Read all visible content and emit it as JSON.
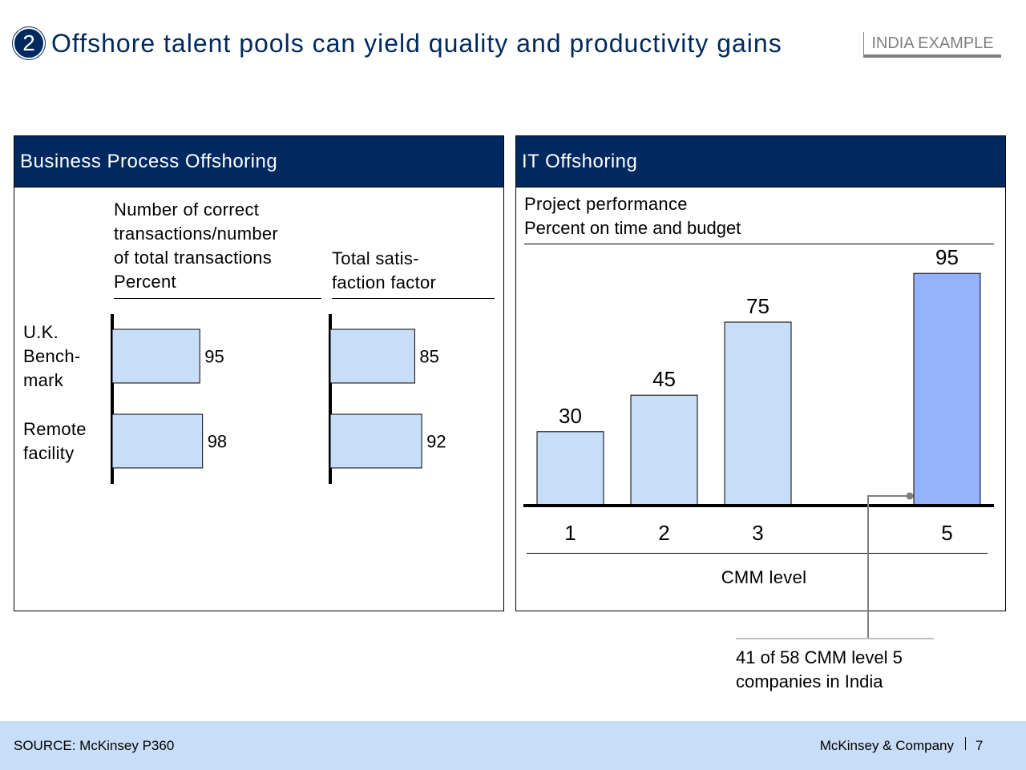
{
  "header": {
    "number": "2",
    "title": "Offshore talent pools can yield quality and productivity gains",
    "tag": "INDIA EXAMPLE"
  },
  "panels": {
    "bpo": {
      "title": "Business Process Offshoring",
      "col1_label": [
        "Number of correct",
        "transactions/number",
        "of total transactions",
        "Percent"
      ],
      "col2_label": [
        "Total satis-",
        "faction factor"
      ],
      "row_labels": [
        [
          "U.K.",
          "Bench-",
          "mark"
        ],
        [
          "Remote",
          "facility"
        ]
      ]
    },
    "it": {
      "title": "IT Offshoring",
      "chart_title": [
        "Project performance",
        "Percent on time and budget"
      ],
      "xlabel": "CMM level",
      "callout": [
        "41 of 58 CMM level 5",
        "companies in India"
      ]
    }
  },
  "chart_data": [
    {
      "type": "bar",
      "orientation": "horizontal",
      "title": "Number of correct transactions/number of total transactions Percent",
      "categories": [
        "U.K. Bench-mark",
        "Remote facility"
      ],
      "values": [
        95,
        98
      ],
      "xlim": [
        0,
        100
      ],
      "color": "#c8ddf8"
    },
    {
      "type": "bar",
      "orientation": "horizontal",
      "title": "Total satis-faction factor",
      "categories": [
        "U.K. Bench-mark",
        "Remote facility"
      ],
      "values": [
        85,
        92
      ],
      "xlim": [
        0,
        100
      ],
      "color": "#c8ddf8"
    },
    {
      "type": "bar",
      "orientation": "vertical",
      "title": "Project performance Percent on time and budget",
      "xlabel": "CMM level",
      "categories": [
        "1",
        "2",
        "3",
        "5"
      ],
      "values": [
        30,
        45,
        75,
        95
      ],
      "ylim": [
        0,
        100
      ],
      "colors": [
        "#c8ddf8",
        "#c8ddf8",
        "#c8ddf8",
        "#94b3fc"
      ],
      "annotation": "41 of 58 CMM level 5 companies in India"
    }
  ],
  "footer": {
    "source": "SOURCE: McKinsey P360",
    "company": "McKinsey & Company",
    "page": "7"
  }
}
